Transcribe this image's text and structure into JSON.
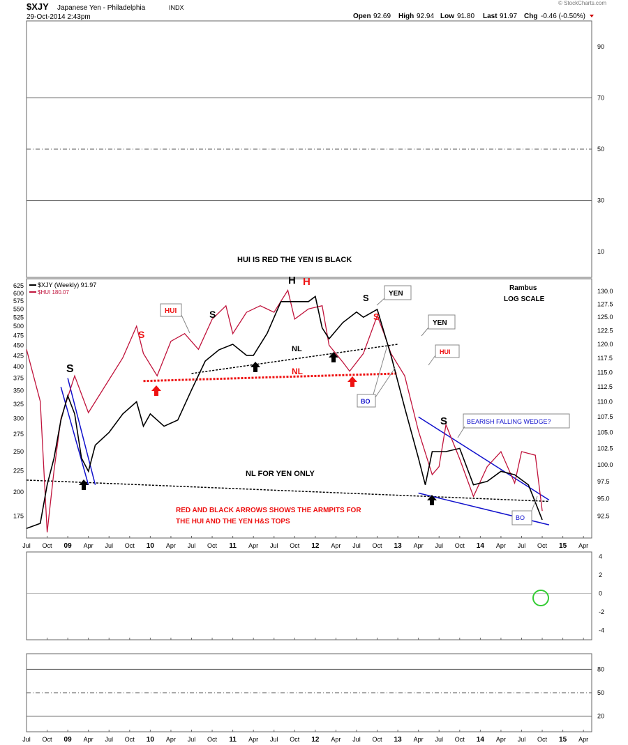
{
  "header": {
    "symbol": "$XJY",
    "name": "Japanese Yen - Philadelphia",
    "exchange": "INDX",
    "date": "29-Oct-2014 2:43pm",
    "open_label": "Open",
    "open": "92.69",
    "high_label": "High",
    "high": "92.94",
    "low_label": "Low",
    "low": "91.80",
    "last_label": "Last",
    "last": "91.97",
    "chg_label": "Chg",
    "chg": "-0.46 (-0.50%)",
    "watermark": "© StockCharts.com"
  },
  "colors": {
    "yen": "#000000",
    "hui": "#c0143c",
    "annot_red": "#ee1111",
    "blue": "#1111cc",
    "rsi_fill": "#a07070",
    "rsi_top_fill": "#5a7a5a",
    "macd_hist": "#3a8fbf",
    "green_circle": "#33cc33",
    "grid": "#999999"
  },
  "x_axis": {
    "labels": [
      "Jul",
      "Oct",
      "09",
      "Apr",
      "Jul",
      "Oct",
      "10",
      "Apr",
      "Jul",
      "Oct",
      "11",
      "Apr",
      "Jul",
      "Oct",
      "12",
      "Apr",
      "Jul",
      "Oct",
      "13",
      "Apr",
      "Jul",
      "Oct",
      "14",
      "Apr",
      "Jul",
      "Oct",
      "15",
      "Apr"
    ],
    "bold_labels": [
      "09",
      "10",
      "11",
      "12",
      "13",
      "14",
      "15"
    ]
  },
  "chart_data": [
    {
      "type": "line",
      "panel": "RSI",
      "ylim": [
        0,
        100
      ],
      "yticks": [
        10,
        30,
        50,
        70,
        90
      ],
      "reference_lines": [
        30,
        50,
        70
      ],
      "series": [],
      "annotations": [
        "HUI IS RED THE YEN IS BLACK"
      ]
    },
    {
      "type": "line",
      "panel": "price",
      "title": "$XJY (Weekly) 91.97",
      "log_scale": true,
      "right_axis": {
        "label": "",
        "ticks": [
          92.5,
          95.0,
          97.5,
          100.0,
          102.5,
          105.0,
          107.5,
          110.0,
          112.5,
          115.0,
          117.5,
          120.0,
          122.5,
          125.0,
          127.5,
          130.0
        ]
      },
      "left_axis": {
        "label": "",
        "ticks": [
          175,
          200,
          225,
          250,
          275,
          300,
          325,
          350,
          375,
          400,
          425,
          450,
          475,
          500,
          525,
          550,
          575,
          600,
          625
        ]
      },
      "legend": [
        {
          "name": "$XJY (Weekly) 91.97",
          "color": "#000000"
        },
        {
          "name": "$HUI 180.07",
          "color": "#c0143c"
        }
      ],
      "series": [
        {
          "name": "$XJY (Weekly) 91.97",
          "axis": "right",
          "points": [
            [
              "2008-07",
              90.8
            ],
            [
              "2008-09",
              91.5
            ],
            [
              "2008-10",
              97
            ],
            [
              "2008-11",
              101
            ],
            [
              "2008-12",
              107
            ],
            [
              "2009-01",
              111
            ],
            [
              "2009-02",
              108
            ],
            [
              "2009-03",
              101
            ],
            [
              "2009-04",
              99
            ],
            [
              "2009-05",
              103
            ],
            [
              "2009-07",
              105
            ],
            [
              "2009-09",
              108
            ],
            [
              "2009-11",
              110
            ],
            [
              "2009-12",
              106
            ],
            [
              "2010-01",
              108
            ],
            [
              "2010-03",
              106
            ],
            [
              "2010-05",
              107
            ],
            [
              "2010-07",
              112
            ],
            [
              "2010-09",
              117
            ],
            [
              "2010-11",
              119
            ],
            [
              "2011-01",
              120
            ],
            [
              "2011-03",
              118
            ],
            [
              "2011-04",
              118
            ],
            [
              "2011-06",
              122
            ],
            [
              "2011-08",
              128
            ],
            [
              "2011-10",
              128
            ],
            [
              "2011-12",
              128
            ],
            [
              "2012-01",
              129
            ],
            [
              "2012-02",
              123
            ],
            [
              "2012-03",
              121
            ],
            [
              "2012-05",
              124
            ],
            [
              "2012-07",
              126
            ],
            [
              "2012-08",
              125
            ],
            [
              "2012-10",
              126.5
            ],
            [
              "2012-12",
              118
            ],
            [
              "2013-02",
              109
            ],
            [
              "2013-04",
              101
            ],
            [
              "2013-05",
              97
            ],
            [
              "2013-06",
              102
            ],
            [
              "2013-08",
              102
            ],
            [
              "2013-10",
              102.5
            ],
            [
              "2013-12",
              97
            ],
            [
              "2014-02",
              97.5
            ],
            [
              "2014-04",
              99
            ],
            [
              "2014-06",
              98.5
            ],
            [
              "2014-08",
              97
            ],
            [
              "2014-10",
              92
            ]
          ]
        },
        {
          "name": "$HUI 180.07",
          "axis": "left",
          "points": [
            [
              "2008-07",
              440
            ],
            [
              "2008-09",
              330
            ],
            [
              "2008-10",
              160
            ],
            [
              "2008-11",
              225
            ],
            [
              "2008-12",
              300
            ],
            [
              "2009-02",
              380
            ],
            [
              "2009-04",
              310
            ],
            [
              "2009-06",
              350
            ],
            [
              "2009-09",
              420
            ],
            [
              "2009-11",
              500
            ],
            [
              "2009-12",
              430
            ],
            [
              "2010-02",
              380
            ],
            [
              "2010-04",
              460
            ],
            [
              "2010-06",
              480
            ],
            [
              "2010-08",
              440
            ],
            [
              "2010-10",
              520
            ],
            [
              "2010-12",
              560
            ],
            [
              "2011-01",
              480
            ],
            [
              "2011-03",
              540
            ],
            [
              "2011-05",
              560
            ],
            [
              "2011-07",
              540
            ],
            [
              "2011-09",
              610
            ],
            [
              "2011-10",
              520
            ],
            [
              "2011-12",
              550
            ],
            [
              "2012-02",
              560
            ],
            [
              "2012-03",
              450
            ],
            [
              "2012-05",
              410
            ],
            [
              "2012-06",
              390
            ],
            [
              "2012-08",
              430
            ],
            [
              "2012-10",
              530
            ],
            [
              "2012-11",
              480
            ],
            [
              "2012-12",
              430
            ],
            [
              "2013-02",
              380
            ],
            [
              "2013-04",
              280
            ],
            [
              "2013-06",
              220
            ],
            [
              "2013-07",
              230
            ],
            [
              "2013-08",
              290
            ],
            [
              "2013-10",
              240
            ],
            [
              "2013-12",
              195
            ],
            [
              "2014-02",
              230
            ],
            [
              "2014-04",
              250
            ],
            [
              "2014-06",
              210
            ],
            [
              "2014-07",
              250
            ],
            [
              "2014-09",
              245
            ],
            [
              "2014-10",
              180
            ]
          ]
        }
      ],
      "trendlines": [
        {
          "name": "NL for Yen (2011-2012)",
          "from": [
            "2010-07",
            114.8
          ],
          "to": [
            "2013-01",
            120
          ]
        },
        {
          "name": "NL for HUI",
          "from": [
            "2009-12",
            113.5
          ],
          "to": [
            "2013-01",
            114.8
          ]
        },
        {
          "name": "NL for Yen only",
          "from": [
            "2008-07",
            97.7
          ],
          "to": [
            "2014-11",
            94.6
          ]
        },
        {
          "name": "Wedge top",
          "from": [
            "2013-04",
            107.5
          ],
          "to": [
            "2014-11",
            94.8
          ]
        },
        {
          "name": "Wedge bottom",
          "from": [
            "2013-04",
            95.8
          ],
          "to": [
            "2014-11",
            91.3
          ]
        },
        {
          "name": "2009 channel line 1",
          "from": [
            "2008-12",
            112.5
          ],
          "to": [
            "2009-04",
            97
          ]
        },
        {
          "name": "2009 channel line 2",
          "from": [
            "2009-01",
            114
          ],
          "to": [
            "2009-05",
            97
          ]
        }
      ],
      "annotations": {
        "rambus": "Rambus",
        "log_scale": "LOG SCALE",
        "nl": "NL",
        "nl_red": "NL",
        "nl_yen_only": "NL FOR YEN ONLY",
        "arrows_note_1": "RED AND BLACK ARROWS SHOWS THE ARMPITS FOR",
        "arrows_note_2": "THE HUI AND THE YEN H&S TOPS",
        "s": "S",
        "h": "H",
        "hui_box": "HUI",
        "yen_box": "YEN",
        "bo": "BO",
        "bearish": "BEARISH FALLING WEDGE?"
      }
    },
    {
      "type": "line",
      "panel": "MACD",
      "ylim": [
        -5,
        4.5
      ],
      "yticks": [
        4,
        2,
        0,
        -2,
        -4
      ],
      "series": []
    },
    {
      "type": "line",
      "panel": "Stochastic",
      "ylim": [
        0,
        100
      ],
      "yticks": [
        20,
        50,
        80
      ],
      "reference_lines": [
        20,
        50,
        80
      ],
      "series": []
    }
  ]
}
